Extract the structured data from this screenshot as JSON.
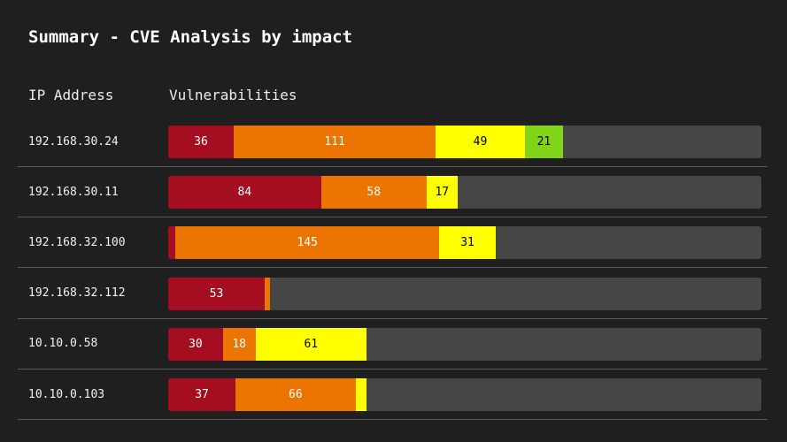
{
  "title": "Summary - CVE Analysis by impact",
  "headers": {
    "ip": "IP Address",
    "vulnerabilities": "Vulnerabilities"
  },
  "chart_data": {
    "type": "bar",
    "orientation": "horizontal",
    "stacked": true,
    "x_max": 326,
    "colors": {
      "series_0": "#a50e20",
      "series_1": "#ec7400",
      "series_2": "#ffff00",
      "series_3": "#80d41a",
      "track": "#464646"
    },
    "categories": [
      "192.168.30.24",
      "192.168.30.11",
      "192.168.32.100",
      "192.168.32.112",
      "10.10.0.58",
      "10.10.0.103"
    ],
    "series": [
      {
        "values": [
          36,
          84,
          4,
          53,
          30,
          37
        ],
        "labels": [
          "36",
          "84",
          "",
          "53",
          "30",
          "37"
        ]
      },
      {
        "values": [
          111,
          58,
          145,
          3,
          18,
          66
        ],
        "labels": [
          "111",
          "58",
          "145",
          "",
          "18",
          "66"
        ]
      },
      {
        "values": [
          49,
          17,
          31,
          0,
          61,
          6
        ],
        "labels": [
          "49",
          "17",
          "31",
          "",
          "61",
          ""
        ]
      },
      {
        "values": [
          21,
          0,
          0,
          0,
          0,
          0
        ],
        "labels": [
          "21",
          "",
          "",
          "",
          "",
          ""
        ]
      }
    ]
  }
}
